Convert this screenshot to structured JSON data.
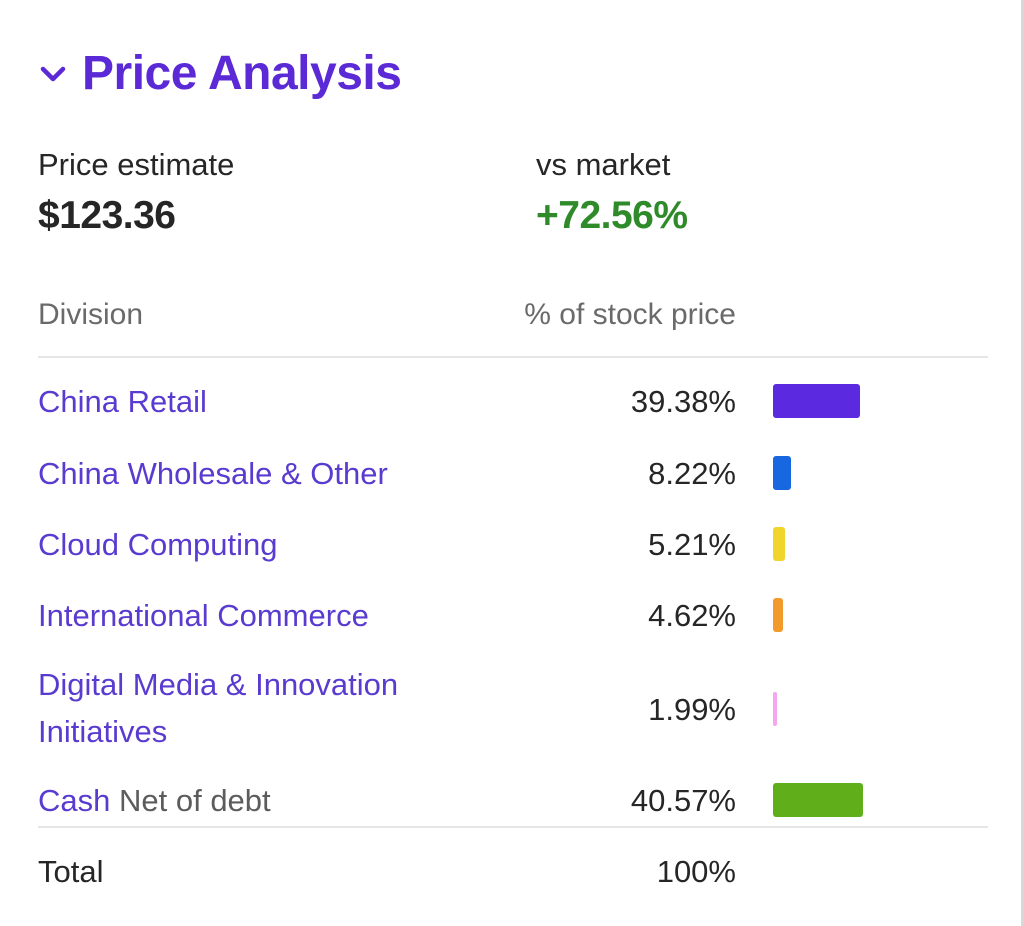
{
  "header": {
    "title": "Price Analysis",
    "toggle_icon": "chevron-down-icon",
    "title_color": "#5b2ad6"
  },
  "summary": {
    "estimate_label": "Price estimate",
    "estimate_value": "$123.36",
    "market_label": "vs market",
    "market_value": "+72.56%",
    "market_color": "#2f8a2a"
  },
  "table": {
    "headers": {
      "division": "Division",
      "pct": "% of stock price"
    },
    "rows": [
      {
        "name": "China Retail",
        "sub": "",
        "pct": "39.38%",
        "value": 39.38,
        "color": "#5b2ae0"
      },
      {
        "name": "China Wholesale & Other",
        "sub": "",
        "pct": "8.22%",
        "value": 8.22,
        "color": "#1667e0"
      },
      {
        "name": "Cloud Computing",
        "sub": "",
        "pct": "5.21%",
        "value": 5.21,
        "color": "#f0d52a"
      },
      {
        "name": "International Commerce",
        "sub": "",
        "pct": "4.62%",
        "value": 4.62,
        "color": "#f39a2c"
      },
      {
        "name": "Digital Media & Innovation Initiatives",
        "sub": "",
        "pct": "1.99%",
        "value": 1.99,
        "color": "#f4a6ee"
      },
      {
        "name": "Cash",
        "sub": "Net of debt",
        "pct": "40.57%",
        "value": 40.57,
        "color": "#5fae1a"
      }
    ],
    "total": {
      "label": "Total",
      "value": "100%"
    }
  }
}
